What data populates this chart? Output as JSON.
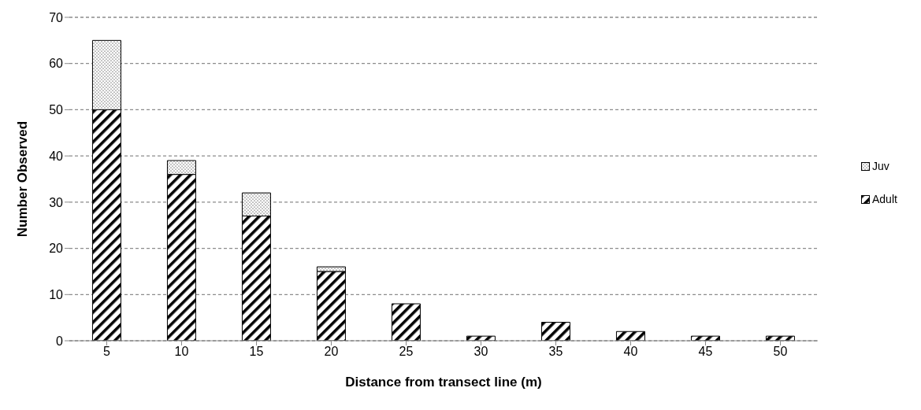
{
  "chart_data": {
    "type": "bar",
    "stacked": true,
    "xlabel": "Distance from transect line (m)",
    "ylabel": "Number Observed",
    "categories": [
      "5",
      "10",
      "15",
      "20",
      "25",
      "30",
      "35",
      "40",
      "45",
      "50"
    ],
    "series": [
      {
        "name": "Adult",
        "color": "#000000",
        "values": [
          50,
          36,
          27,
          15,
          8,
          1,
          4,
          2,
          1,
          1
        ]
      },
      {
        "name": "Juv",
        "color": "#000000",
        "values": [
          15,
          3,
          5,
          1,
          0,
          0,
          0,
          0,
          0,
          0
        ]
      }
    ],
    "ylim": [
      0,
      70
    ],
    "yticks": [
      0,
      10,
      20,
      30,
      40,
      50,
      60,
      70
    ],
    "grid": "y",
    "legend": "right"
  }
}
